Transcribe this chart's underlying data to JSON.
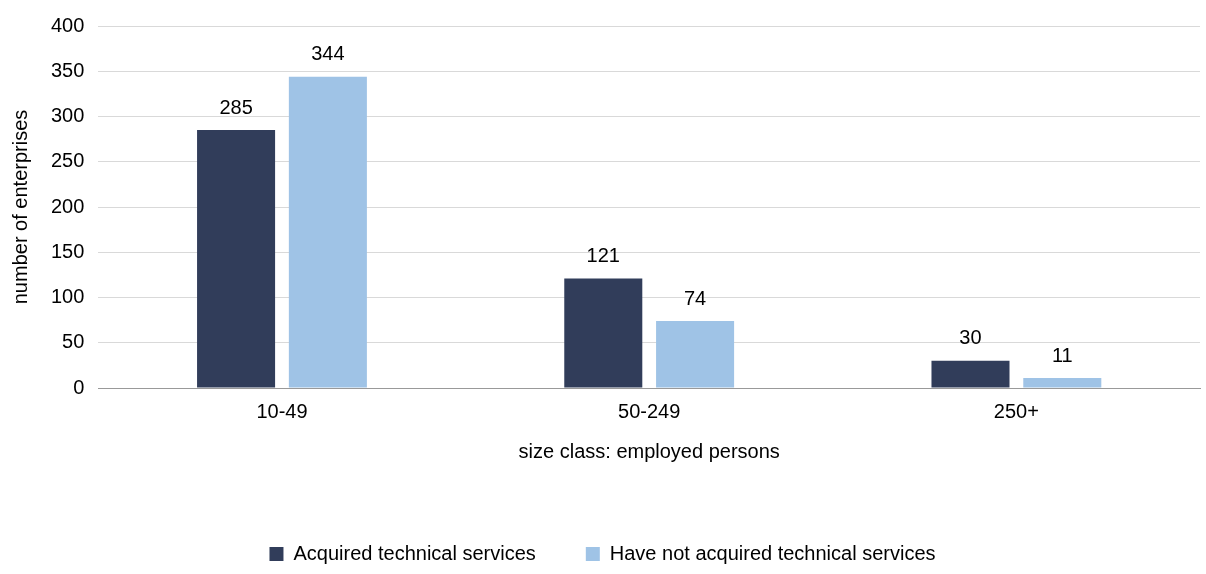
{
  "chart_data": {
    "type": "bar",
    "xlabel": "size class: employed persons",
    "ylabel": "number of enterprises",
    "categories": [
      "10-49",
      "50-249",
      "250+"
    ],
    "series": [
      {
        "name": "Acquired technical services",
        "color": "#313d5a",
        "values": [
          285,
          121,
          30
        ]
      },
      {
        "name": "Have not acquired technical services",
        "color": "#9fc3e6",
        "values": [
          344,
          74,
          11
        ]
      }
    ],
    "ylim": [
      0,
      400
    ],
    "yticks": [
      0,
      50,
      100,
      150,
      200,
      250,
      300,
      350,
      400
    ],
    "grid": "y",
    "legend": "bottom",
    "data_labels": true
  }
}
